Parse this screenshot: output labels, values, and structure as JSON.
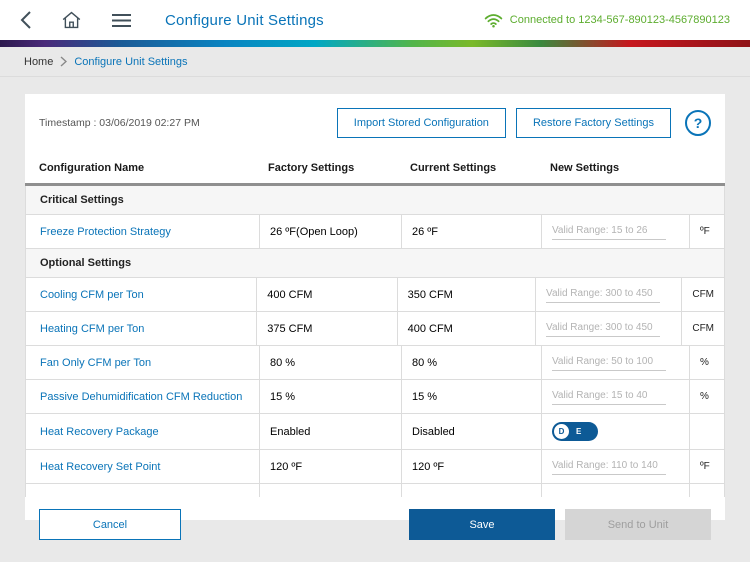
{
  "header": {
    "title": "Configure Unit Settings",
    "connection_status": "Connected to 1234-567-890123-4567890123"
  },
  "icons": {
    "back": "chevron-left",
    "home": "house-outline",
    "menu": "hamburger",
    "wifi": "wifi-arcs",
    "help": "?",
    "breadcrumb_separator": "chevron-right"
  },
  "breadcrumb": {
    "home": "Home",
    "current": "Configure Unit Settings"
  },
  "toolbar": {
    "timestamp": "Timestamp : 03/06/2019 02:27 PM",
    "import_button": "Import Stored Configuration",
    "restore_button": "Restore Factory Settings",
    "help_label": "?"
  },
  "table": {
    "headers": [
      "Configuration Name",
      "Factory Settings",
      "Current Settings",
      "New Settings"
    ],
    "sections": [
      {
        "title": "Critical Settings",
        "rows": [
          {
            "name": "Freeze Protection Strategy",
            "factory": "26 ºF(Open Loop)",
            "current": "26 ºF",
            "input_type": "text",
            "placeholder": "Valid Range: 15 to 26",
            "unit": "ºF"
          }
        ]
      },
      {
        "title": "Optional Settings",
        "rows": [
          {
            "name": "Cooling CFM per Ton",
            "factory": "400 CFM",
            "current": "350 CFM",
            "input_type": "text",
            "placeholder": "Valid Range: 300 to 450",
            "unit": "CFM"
          },
          {
            "name": "Heating CFM per Ton",
            "factory": "375 CFM",
            "current": "400 CFM",
            "input_type": "text",
            "placeholder": "Valid Range: 300 to 450",
            "unit": "CFM"
          },
          {
            "name": "Fan Only CFM per Ton",
            "factory": "80 %",
            "current": "80 %",
            "input_type": "text",
            "placeholder": "Valid Range: 50 to 100",
            "unit": "%"
          },
          {
            "name": "Passive Dehumidification CFM Reduction",
            "factory": "15 %",
            "current": "15 %",
            "input_type": "text",
            "placeholder": "Valid Range: 15 to 40",
            "unit": "%"
          },
          {
            "name": "Heat Recovery Package",
            "factory": "Enabled",
            "current": "Disabled",
            "input_type": "toggle",
            "toggle": {
              "off_label": "D",
              "on_label": "E",
              "state": "D"
            }
          },
          {
            "name": "Heat Recovery Set Point",
            "factory": "120 ºF",
            "current": "120 ºF",
            "input_type": "text",
            "placeholder": "Valid Range: 110 to 140",
            "unit": "ºF"
          }
        ]
      }
    ]
  },
  "footer": {
    "cancel": "Cancel",
    "save": "Save",
    "send": "Send to Unit"
  },
  "colors": {
    "accent_blue": "#0a74b8",
    "dark_blue": "#0d5a96",
    "connected_green": "#5dad2f",
    "disabled_gray": "#d5d5d5",
    "page_background": "#e9e9e9"
  }
}
